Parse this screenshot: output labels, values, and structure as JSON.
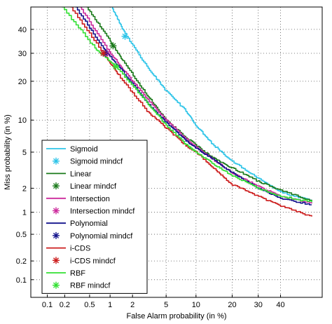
{
  "chart_data": {
    "type": "line",
    "title": "",
    "xlabel": "False Alarm probability (in %)",
    "ylabel": "Miss probability (in %)",
    "xscale": "probit",
    "yscale": "probit",
    "xlim": [
      0.05,
      60
    ],
    "ylim": [
      0.05,
      50
    ],
    "grid": true,
    "grid_style": "dotted",
    "legend_position": "lower-left",
    "x_ticks": [
      {
        "value": 0.1,
        "label": "0.1"
      },
      {
        "value": 0.2,
        "label": "0.2"
      },
      {
        "value": 0.5,
        "label": "0.5"
      },
      {
        "value": 1,
        "label": "1"
      },
      {
        "value": 2,
        "label": "2"
      },
      {
        "value": 5,
        "label": "5"
      },
      {
        "value": 10,
        "label": "10"
      },
      {
        "value": 20,
        "label": "20"
      },
      {
        "value": 30,
        "label": "30"
      },
      {
        "value": 40,
        "label": "40"
      }
    ],
    "y_ticks": [
      {
        "value": 0.1,
        "label": "0.1"
      },
      {
        "value": 0.2,
        "label": "0.2"
      },
      {
        "value": 0.5,
        "label": "0.5"
      },
      {
        "value": 1,
        "label": "1"
      },
      {
        "value": 2,
        "label": "2"
      },
      {
        "value": 5,
        "label": "5"
      },
      {
        "value": 10,
        "label": "10"
      },
      {
        "value": 20,
        "label": "20"
      },
      {
        "value": 30,
        "label": "30"
      },
      {
        "value": 40,
        "label": "40"
      }
    ],
    "series": [
      {
        "name": "Sigmoid",
        "color": "#2ec4e8",
        "points": [
          [
            1.05,
            50
          ],
          [
            1.6,
            38
          ],
          [
            3,
            25
          ],
          [
            5,
            17
          ],
          [
            8,
            12
          ],
          [
            10,
            9
          ],
          [
            14,
            6
          ],
          [
            20,
            4
          ],
          [
            30,
            2.6
          ],
          [
            40,
            1.8
          ],
          [
            55,
            1.4
          ]
        ],
        "mindcf": {
          "name": "Sigmoid mindcf",
          "x": 1.6,
          "y": 37
        }
      },
      {
        "name": "Linear",
        "color": "#1b7a1b",
        "points": [
          [
            0.45,
            50
          ],
          [
            1,
            35
          ],
          [
            1.5,
            27
          ],
          [
            3,
            16
          ],
          [
            5,
            10
          ],
          [
            8,
            7
          ],
          [
            12,
            5
          ],
          [
            16,
            4
          ],
          [
            20,
            3.4
          ],
          [
            30,
            2.4
          ],
          [
            40,
            1.9
          ],
          [
            55,
            1.4
          ]
        ],
        "mindcf": {
          "name": "Linear mindcf",
          "x": 1.1,
          "y": 33
        }
      },
      {
        "name": "Intersection",
        "color": "#cc2a9c",
        "points": [
          [
            0.35,
            50
          ],
          [
            0.9,
            32
          ],
          [
            1.6,
            23
          ],
          [
            3,
            15
          ],
          [
            5,
            10
          ],
          [
            8,
            6.8
          ],
          [
            12,
            4.8
          ],
          [
            20,
            3
          ],
          [
            30,
            2.1
          ],
          [
            40,
            1.6
          ],
          [
            55,
            1.3
          ]
        ],
        "mindcf": {
          "name": "Intersection mindcf",
          "x": 0.9,
          "y": 30
        }
      },
      {
        "name": "Polynomial",
        "color": "#12128c",
        "points": [
          [
            0.3,
            50
          ],
          [
            0.8,
            32
          ],
          [
            1.4,
            24
          ],
          [
            3,
            14
          ],
          [
            5,
            9.5
          ],
          [
            8,
            6.5
          ],
          [
            10,
            5.5
          ],
          [
            15,
            4
          ],
          [
            20,
            3
          ],
          [
            30,
            2
          ],
          [
            40,
            1.5
          ],
          [
            55,
            1.25
          ]
        ],
        "mindcf": {
          "name": "Polynomial mindcf",
          "x": 0.85,
          "y": 30
        }
      },
      {
        "name": "i-CDS",
        "color": "#cc1d1d",
        "points": [
          [
            0.25,
            50
          ],
          [
            0.8,
            30
          ],
          [
            1.3,
            22
          ],
          [
            3,
            12
          ],
          [
            5,
            8.5
          ],
          [
            8,
            5.8
          ],
          [
            10,
            5
          ],
          [
            15,
            3.2
          ],
          [
            20,
            2.2
          ],
          [
            30,
            1.6
          ],
          [
            40,
            1.2
          ],
          [
            55,
            0.88
          ]
        ],
        "mindcf": {
          "name": "i-CDS mindcf",
          "x": 0.8,
          "y": 30
        }
      },
      {
        "name": "RBF",
        "color": "#33e033",
        "points": [
          [
            0.18,
            50
          ],
          [
            0.6,
            32
          ],
          [
            1.2,
            25
          ],
          [
            3,
            14
          ],
          [
            5,
            9
          ],
          [
            8,
            6
          ],
          [
            10,
            5
          ],
          [
            15,
            3.6
          ],
          [
            20,
            2.8
          ],
          [
            30,
            2
          ],
          [
            40,
            1.6
          ],
          [
            55,
            1.35
          ]
        ],
        "mindcf": {
          "name": "RBF mindcf",
          "x": 1.2,
          "y": 25
        }
      }
    ]
  }
}
